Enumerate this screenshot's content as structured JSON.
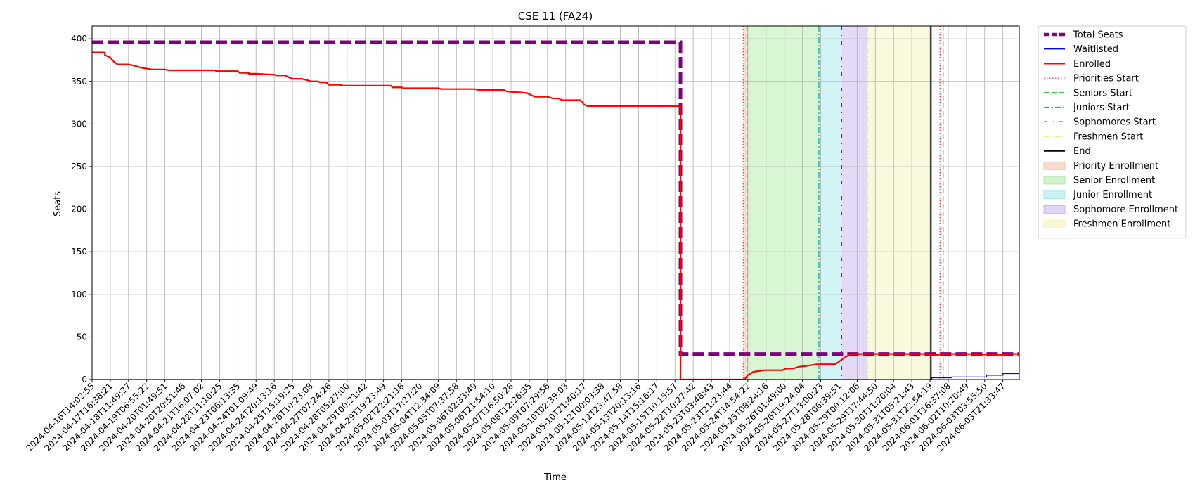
{
  "chart_data": {
    "type": "line",
    "title": "CSE 11 (FA24)",
    "xlabel": "Time",
    "ylabel": "Seats",
    "ylim": [
      0,
      415
    ],
    "yticks": [
      0,
      50,
      100,
      150,
      200,
      250,
      300,
      350,
      400
    ],
    "grid": true,
    "legend_position": "outside-right",
    "x_ticks": [
      "2024-04-16T14:02:55",
      "2024-04-17T16:38:21",
      "2024-04-18T11:49:27",
      "2024-04-19T06:55:22",
      "2024-04-20T01:49:51",
      "2024-04-20T20:51:46",
      "2024-04-21T16:07:02",
      "2024-04-22T11:10:25",
      "2024-04-23T06:13:35",
      "2024-04-24T01:09:49",
      "2024-04-24T20:13:16",
      "2024-04-25T15:19:25",
      "2024-04-26T10:23:08",
      "2024-04-27T07:24:26",
      "2024-04-28T05:27:00",
      "2024-04-29T00:21:42",
      "2024-04-29T19:23:49",
      "2024-05-02T22:21:18",
      "2024-05-03T17:27:20",
      "2024-05-04T12:34:09",
      "2024-05-05T07:37:58",
      "2024-05-06T02:33:49",
      "2024-05-06T21:54:10",
      "2024-05-07T16:50:28",
      "2024-05-08T12:26:35",
      "2024-05-09T07:29:56",
      "2024-05-10T02:39:03",
      "2024-05-10T21:40:17",
      "2024-05-12T00:03:38",
      "2024-05-12T23:47:58",
      "2024-05-13T20:13:16",
      "2024-05-14T15:16:17",
      "2024-05-15T10:15:57",
      "2024-05-22T10:27:42",
      "2024-05-23T03:48:43",
      "2024-05-23T21:23:44",
      "2024-05-24T14:54:22",
      "2024-05-25T08:24:16",
      "2024-05-26T01:49:00",
      "2024-05-26T19:24:04",
      "2024-05-27T13:00:23",
      "2024-05-28T06:39:51",
      "2024-05-29T00:12:06",
      "2024-05-29T17:44:50",
      "2024-05-30T11:20:04",
      "2024-05-31T05:21:43",
      "2024-05-31T22:54:19",
      "2024-06-01T16:37:08",
      "2024-06-02T10:20:49",
      "2024-06-03T03:55:50",
      "2024-06-03T21:33:47"
    ],
    "x_index_range": [
      0,
      50.9
    ],
    "series": [
      {
        "name": "Total Seats",
        "color": "#800080",
        "style": "dashed",
        "width": "thick",
        "points": [
          [
            0,
            396
          ],
          [
            32.3,
            396
          ],
          [
            32.3,
            30
          ],
          [
            50.9,
            30
          ]
        ]
      },
      {
        "name": "Waitlisted",
        "color": "#0000ff",
        "style": "solid",
        "width": "thin",
        "points": [
          [
            0,
            0
          ],
          [
            46.1,
            0
          ],
          [
            46.1,
            2
          ],
          [
            47.2,
            2
          ],
          [
            47.2,
            3
          ],
          [
            49.1,
            3
          ],
          [
            49.1,
            5
          ],
          [
            50.0,
            5
          ],
          [
            50.0,
            7
          ],
          [
            50.9,
            7
          ]
        ]
      },
      {
        "name": "Enrolled",
        "color": "#ff0000",
        "style": "solid",
        "width": "medium",
        "points": [
          [
            0,
            384
          ],
          [
            0.7,
            384
          ],
          [
            0.7,
            381
          ],
          [
            1.0,
            378
          ],
          [
            1.2,
            373
          ],
          [
            1.4,
            370
          ],
          [
            2.0,
            370
          ],
          [
            2.4,
            368
          ],
          [
            2.7,
            366
          ],
          [
            3.0,
            365
          ],
          [
            3.3,
            364
          ],
          [
            4.0,
            364
          ],
          [
            4.2,
            363
          ],
          [
            6.8,
            363
          ],
          [
            6.8,
            362
          ],
          [
            7.0,
            362
          ],
          [
            8.0,
            362
          ],
          [
            8.1,
            360
          ],
          [
            8.6,
            360
          ],
          [
            8.6,
            359
          ],
          [
            9.0,
            359
          ],
          [
            9.9,
            358
          ],
          [
            10.0,
            358
          ],
          [
            10.1,
            357
          ],
          [
            10.6,
            357
          ],
          [
            10.8,
            355
          ],
          [
            11.0,
            353
          ],
          [
            11.5,
            353
          ],
          [
            11.7,
            352
          ],
          [
            11.9,
            351
          ],
          [
            12.0,
            350
          ],
          [
            12.4,
            350
          ],
          [
            12.5,
            349
          ],
          [
            12.8,
            349
          ],
          [
            12.9,
            348
          ],
          [
            13.0,
            346
          ],
          [
            13.6,
            346
          ],
          [
            13.8,
            345
          ],
          [
            16.4,
            345
          ],
          [
            16.5,
            343
          ],
          [
            17.0,
            343
          ],
          [
            17.1,
            342
          ],
          [
            19.0,
            342
          ],
          [
            19.2,
            341
          ],
          [
            21.0,
            341
          ],
          [
            21.2,
            340
          ],
          [
            22.6,
            340
          ],
          [
            22.8,
            338
          ],
          [
            23.6,
            337
          ],
          [
            23.9,
            336
          ],
          [
            24.1,
            334
          ],
          [
            24.3,
            332
          ],
          [
            25.0,
            332
          ],
          [
            25.3,
            330
          ],
          [
            25.6,
            330
          ],
          [
            25.8,
            328
          ],
          [
            26.8,
            328
          ],
          [
            26.9,
            326
          ],
          [
            27.0,
            323
          ],
          [
            27.2,
            321
          ],
          [
            32.2,
            321
          ],
          [
            32.3,
            321
          ],
          [
            32.3,
            0
          ],
          [
            35.8,
            0
          ],
          [
            36.0,
            5
          ],
          [
            36.3,
            9
          ],
          [
            36.6,
            10
          ],
          [
            36.9,
            11
          ],
          [
            37.9,
            11
          ],
          [
            38.1,
            13
          ],
          [
            38.5,
            13
          ],
          [
            38.8,
            15
          ],
          [
            39.2,
            16
          ],
          [
            39.5,
            17
          ],
          [
            39.8,
            18
          ],
          [
            40.8,
            18
          ],
          [
            41.0,
            21
          ],
          [
            41.2,
            24
          ],
          [
            41.4,
            27
          ],
          [
            41.6,
            29
          ],
          [
            41.8,
            30
          ],
          [
            46.0,
            30
          ],
          [
            46.4,
            29
          ],
          [
            46.8,
            30
          ],
          [
            48.0,
            30
          ],
          [
            50.0,
            29
          ],
          [
            50.3,
            30
          ],
          [
            50.9,
            30
          ]
        ]
      }
    ],
    "vertical_lines": [
      {
        "name": "Priorities Start",
        "x": 35.75,
        "color": "#ff3b3b",
        "style": "dotted"
      },
      {
        "name": "Seniors Start",
        "x": 35.95,
        "color": "#22bb22",
        "style": "dashed"
      },
      {
        "name": "Juniors Start",
        "x": 39.9,
        "color": "#14b8b8",
        "style": "dashdot"
      },
      {
        "name": "Sophomores Start",
        "x": 41.15,
        "color": "#6a1fd1",
        "style": "dashdotsparse"
      },
      {
        "name": "Freshmen Start",
        "x": 42.55,
        "color": "#d9d400",
        "style": "dashdot"
      },
      {
        "name": "End",
        "x": 46.05,
        "color": "#000000",
        "style": "solid"
      },
      {
        "name": "",
        "x": 46.55,
        "color": "#ff3b3b",
        "style": "dotted"
      },
      {
        "name": "",
        "x": 46.72,
        "color": "#22bb22",
        "style": "dashed"
      }
    ],
    "shaded_regions": [
      {
        "name": "Priority Enrollment",
        "from": 35.75,
        "to": 35.95,
        "color": "#f4b89a"
      },
      {
        "name": "Senior Enrollment",
        "from": 35.95,
        "to": 39.9,
        "color": "#a8e8a0"
      },
      {
        "name": "Junior Enrollment",
        "from": 39.9,
        "to": 41.15,
        "color": "#9ee6e6"
      },
      {
        "name": "Sophomore Enrollment",
        "from": 41.15,
        "to": 42.55,
        "color": "#c6aeec"
      },
      {
        "name": "Freshmen Enrollment",
        "from": 42.55,
        "to": 46.05,
        "color": "#f2f2b4"
      }
    ],
    "legend": [
      {
        "label": "Total Seats",
        "kind": "line",
        "color": "#800080",
        "style": "dashed",
        "width": "thick"
      },
      {
        "label": "Waitlisted",
        "kind": "line",
        "color": "#0000ff",
        "style": "solid",
        "width": "thin"
      },
      {
        "label": "Enrolled",
        "kind": "line",
        "color": "#ff0000",
        "style": "solid",
        "width": "medium"
      },
      {
        "label": "Priorities Start",
        "kind": "line",
        "color": "#ff3b3b",
        "style": "dotted",
        "width": "thin"
      },
      {
        "label": "Seniors Start",
        "kind": "line",
        "color": "#22bb22",
        "style": "dashed",
        "width": "thin"
      },
      {
        "label": "Juniors Start",
        "kind": "line",
        "color": "#14b8b8",
        "style": "dashdot",
        "width": "thin"
      },
      {
        "label": "Sophomores Start",
        "kind": "line",
        "color": "#6a1fd1",
        "style": "dashdotsparse",
        "width": "thin"
      },
      {
        "label": "Freshmen Start",
        "kind": "line",
        "color": "#d9d400",
        "style": "dashdot",
        "width": "thin"
      },
      {
        "label": "End",
        "kind": "line",
        "color": "#000000",
        "style": "solid",
        "width": "medium"
      },
      {
        "label": "Priority Enrollment",
        "kind": "patch",
        "color": "#f4b89a"
      },
      {
        "label": "Senior Enrollment",
        "kind": "patch",
        "color": "#a8e8a0"
      },
      {
        "label": "Junior Enrollment",
        "kind": "patch",
        "color": "#9ee6e6"
      },
      {
        "label": "Sophomore Enrollment",
        "kind": "patch",
        "color": "#c6aeec"
      },
      {
        "label": "Freshmen Enrollment",
        "kind": "patch",
        "color": "#f2f2b4"
      }
    ]
  }
}
